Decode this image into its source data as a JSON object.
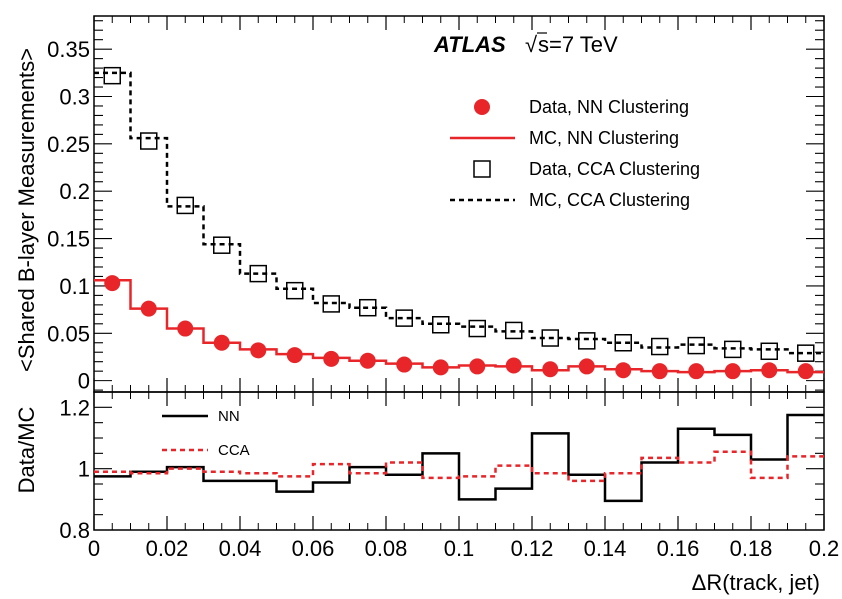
{
  "chart_data": {
    "type": "line",
    "experiment": "ATLAS",
    "energy_label": "s=7 TeV",
    "sqrt_symbol": "√",
    "xlabel": "ΔR(track, jet)",
    "xlim": [
      0,
      0.2
    ],
    "x_ticks": [
      0,
      0.02,
      0.04,
      0.06,
      0.08,
      0.1,
      0.12,
      0.14,
      0.16,
      0.18,
      0.2
    ],
    "x_tick_labels": [
      "0",
      "0.02",
      "0.04",
      "0.06",
      "0.08",
      "0.1",
      "0.12",
      "0.14",
      "0.16",
      "0.18",
      "0.2"
    ],
    "bin_edges": [
      0,
      0.01,
      0.02,
      0.03,
      0.04,
      0.05,
      0.06,
      0.07,
      0.08,
      0.09,
      0.1,
      0.11,
      0.12,
      0.13,
      0.14,
      0.15,
      0.16,
      0.17,
      0.18,
      0.19,
      0.2
    ],
    "bin_centers": [
      0.005,
      0.015,
      0.025,
      0.035,
      0.045,
      0.055,
      0.065,
      0.075,
      0.085,
      0.095,
      0.105,
      0.115,
      0.125,
      0.135,
      0.145,
      0.155,
      0.165,
      0.175,
      0.185,
      0.195
    ],
    "main_panel": {
      "ylabel": "<Shared B-layer Measurements>",
      "ylim": [
        -0.012,
        0.385
      ],
      "y_ticks": [
        0,
        0.05,
        0.1,
        0.15,
        0.2,
        0.25,
        0.3,
        0.35
      ],
      "y_tick_labels": [
        "0",
        "0.05",
        "0.1",
        "0.15",
        "0.2",
        "0.25",
        "0.3",
        "0.35"
      ],
      "series": [
        {
          "name": "Data, NN Clustering",
          "style": "markers-filled-circle",
          "color": "#e8262a",
          "values": [
            0.103,
            0.076,
            0.055,
            0.04,
            0.032,
            0.027,
            0.023,
            0.021,
            0.017,
            0.014,
            0.015,
            0.016,
            0.012,
            0.015,
            0.011,
            0.01,
            0.01,
            0.01,
            0.011,
            0.01
          ]
        },
        {
          "name": "MC, NN Clustering",
          "style": "step-solid",
          "color": "#e8262a",
          "values": [
            0.106,
            0.076,
            0.055,
            0.04,
            0.033,
            0.028,
            0.024,
            0.021,
            0.018,
            0.014,
            0.016,
            0.015,
            0.011,
            0.015,
            0.012,
            0.01,
            0.009,
            0.01,
            0.011,
            0.009
          ]
        },
        {
          "name": "Data, CCA Clustering",
          "style": "markers-open-square",
          "color": "#000000",
          "values": [
            0.322,
            0.253,
            0.185,
            0.143,
            0.113,
            0.095,
            0.081,
            0.077,
            0.066,
            0.059,
            0.055,
            0.053,
            0.045,
            0.042,
            0.04,
            0.036,
            0.037,
            0.033,
            0.031,
            0.029
          ]
        },
        {
          "name": "MC, CCA Clustering",
          "style": "step-dashed",
          "color": "#000000",
          "values": [
            0.325,
            0.256,
            0.184,
            0.144,
            0.113,
            0.097,
            0.082,
            0.077,
            0.066,
            0.06,
            0.057,
            0.052,
            0.045,
            0.044,
            0.04,
            0.035,
            0.038,
            0.034,
            0.033,
            0.029
          ]
        }
      ]
    },
    "ratio_panel": {
      "ylabel": "Data/MC",
      "ylim": [
        0.8,
        1.25
      ],
      "y_ticks": [
        0.8,
        1,
        1.2
      ],
      "y_tick_labels": [
        "0.8",
        "1",
        "1.2"
      ],
      "series": [
        {
          "name": "NN",
          "style": "step-solid",
          "color": "#000000",
          "values": [
            0.975,
            0.99,
            1.005,
            0.96,
            0.96,
            0.925,
            0.955,
            1.005,
            0.98,
            1.05,
            0.9,
            0.935,
            1.115,
            0.98,
            0.895,
            1.02,
            1.13,
            1.11,
            1.03,
            1.175
          ]
        },
        {
          "name": "CCA",
          "style": "step-dashed",
          "color": "#e8262a",
          "values": [
            0.99,
            0.985,
            1.0,
            0.99,
            0.985,
            0.975,
            1.015,
            0.985,
            1.02,
            0.97,
            0.975,
            1.01,
            0.985,
            0.96,
            0.985,
            1.035,
            1.02,
            1.055,
            0.97,
            1.04
          ]
        }
      ]
    },
    "legend": {
      "placement": "top-right",
      "entries": [
        "Data, NN Clustering",
        "MC, NN Clustering",
        "Data, CCA Clustering",
        "MC, CCA Clustering"
      ]
    },
    "ratio_legend": {
      "placement": "top-left",
      "entries": [
        "NN",
        "CCA"
      ]
    }
  }
}
